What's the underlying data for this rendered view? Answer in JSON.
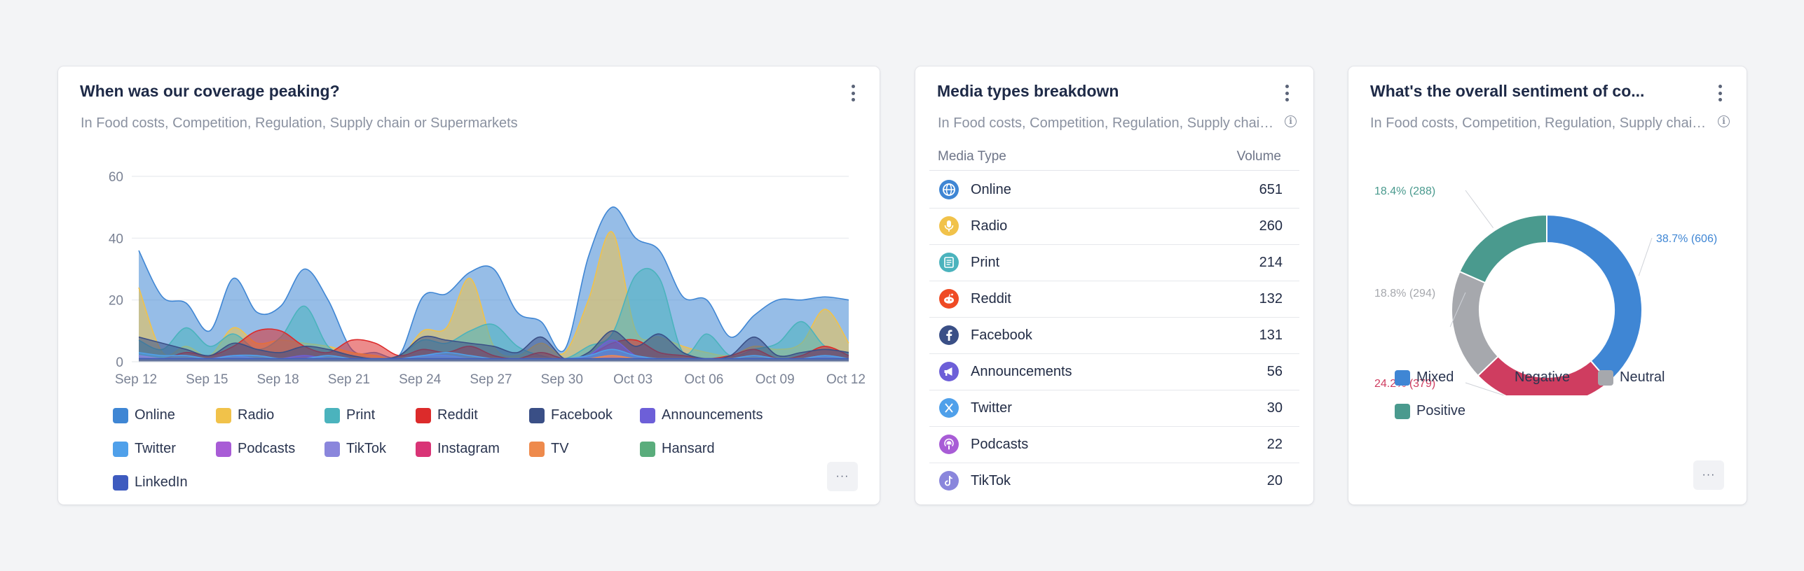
{
  "coverage_card": {
    "title": "When was our coverage peaking?",
    "subtitle": "In Food costs, Competition, Regulation, Supply chain or Supermarkets",
    "more_label": "···",
    "legend": [
      {
        "name": "Online",
        "color": "#3f86d4"
      },
      {
        "name": "Radio",
        "color": "#f1c24a"
      },
      {
        "name": "Print",
        "color": "#4bb3bd"
      },
      {
        "name": "Reddit",
        "color": "#dc2b2b"
      },
      {
        "name": "Facebook",
        "color": "#3a4f86"
      },
      {
        "name": "Announcements",
        "color": "#6d5fd8"
      },
      {
        "name": "Twitter",
        "color": "#4fa0ea"
      },
      {
        "name": "Podcasts",
        "color": "#a85cd6"
      },
      {
        "name": "TikTok",
        "color": "#8a86dc"
      },
      {
        "name": "Instagram",
        "color": "#d93476"
      },
      {
        "name": "TV",
        "color": "#ee8a4c"
      },
      {
        "name": "Hansard",
        "color": "#5aad7c"
      },
      {
        "name": "LinkedIn",
        "color": "#3e5bbf"
      }
    ]
  },
  "chart_data": [
    {
      "type": "area",
      "title": "When was our coverage peaking?",
      "ylim": [
        0,
        60
      ],
      "yticks": [
        "0",
        "20",
        "40",
        "60"
      ],
      "xticks": [
        "Sep 12",
        "Sep 15",
        "Sep 18",
        "Sep 21",
        "Sep 24",
        "Sep 27",
        "Sep 30",
        "Oct 03",
        "Oct 06",
        "Oct 09",
        "Oct 12"
      ],
      "x": [
        "Sep 12",
        "Sep 13",
        "Sep 14",
        "Sep 15",
        "Sep 16",
        "Sep 17",
        "Sep 18",
        "Sep 19",
        "Sep 20",
        "Sep 21",
        "Sep 22",
        "Sep 23",
        "Sep 24",
        "Sep 25",
        "Sep 26",
        "Sep 27",
        "Sep 28",
        "Sep 29",
        "Sep 30",
        "Oct 01",
        "Oct 02",
        "Oct 03",
        "Oct 04",
        "Oct 05",
        "Oct 06",
        "Oct 07",
        "Oct 08",
        "Oct 09",
        "Oct 10",
        "Oct 11",
        "Oct 12"
      ],
      "grid": true,
      "legend_position": "bottom",
      "series": [
        {
          "name": "Online",
          "values": [
            36,
            21,
            19,
            10,
            27,
            16,
            18,
            30,
            20,
            4,
            3,
            2,
            21,
            22,
            29,
            30,
            16,
            13,
            4,
            34,
            50,
            40,
            36,
            21,
            20,
            8,
            15,
            20,
            20,
            21,
            20
          ]
        },
        {
          "name": "Radio",
          "values": [
            24,
            3,
            5,
            2,
            11,
            6,
            7,
            6,
            5,
            3,
            2,
            1,
            10,
            11,
            27,
            5,
            2,
            6,
            3,
            20,
            42,
            10,
            8,
            5,
            3,
            2,
            5,
            4,
            6,
            17,
            6
          ]
        },
        {
          "name": "Print",
          "values": [
            7,
            4,
            11,
            5,
            9,
            4,
            8,
            18,
            5,
            2,
            1,
            2,
            7,
            6,
            10,
            12,
            5,
            2,
            1,
            5,
            9,
            28,
            27,
            3,
            9,
            2,
            4,
            6,
            13,
            5,
            3
          ]
        },
        {
          "name": "Reddit",
          "values": [
            2,
            1,
            3,
            2,
            5,
            10,
            10,
            5,
            3,
            7,
            6,
            2,
            4,
            3,
            5,
            2,
            1,
            3,
            1,
            2,
            6,
            7,
            3,
            2,
            1,
            2,
            4,
            1,
            2,
            5,
            2
          ]
        },
        {
          "name": "Facebook",
          "values": [
            8,
            6,
            4,
            2,
            6,
            4,
            3,
            5,
            4,
            2,
            1,
            2,
            8,
            7,
            6,
            5,
            3,
            8,
            1,
            3,
            10,
            5,
            9,
            3,
            1,
            2,
            8,
            2,
            3,
            4,
            3
          ]
        },
        {
          "name": "Announcements",
          "values": [
            2,
            1,
            1,
            1,
            2,
            1,
            1,
            2,
            1,
            1,
            1,
            1,
            2,
            2,
            1,
            1,
            1,
            1,
            1,
            2,
            7,
            2,
            1,
            1,
            1,
            1,
            1,
            1,
            1,
            2,
            1
          ]
        },
        {
          "name": "Twitter",
          "values": [
            3,
            2,
            2,
            1,
            2,
            2,
            1,
            1,
            2,
            1,
            1,
            1,
            2,
            3,
            2,
            1,
            1,
            1,
            1,
            2,
            4,
            2,
            1,
            1,
            1,
            1,
            2,
            1,
            1,
            2,
            1
          ]
        },
        {
          "name": "Podcasts",
          "values": [
            1,
            1,
            1,
            1,
            1,
            1,
            1,
            1,
            1,
            1,
            1,
            1,
            1,
            1,
            1,
            1,
            1,
            1,
            1,
            1,
            2,
            1,
            1,
            1,
            1,
            1,
            1,
            1,
            1,
            1,
            1
          ]
        },
        {
          "name": "TikTok",
          "values": [
            2,
            1,
            1,
            1,
            1,
            1,
            1,
            1,
            1,
            1,
            1,
            1,
            1,
            1,
            1,
            1,
            1,
            1,
            1,
            1,
            1,
            1,
            1,
            1,
            1,
            1,
            1,
            1,
            1,
            1,
            1
          ]
        },
        {
          "name": "Instagram",
          "values": [
            1,
            1,
            1,
            1,
            1,
            1,
            1,
            1,
            1,
            1,
            1,
            1,
            1,
            1,
            1,
            1,
            1,
            1,
            1,
            1,
            1,
            1,
            1,
            1,
            1,
            1,
            1,
            1,
            1,
            1,
            1
          ]
        },
        {
          "name": "TV",
          "values": [
            1,
            1,
            1,
            1,
            1,
            1,
            1,
            1,
            1,
            1,
            1,
            1,
            1,
            1,
            1,
            1,
            1,
            1,
            1,
            1,
            2,
            1,
            1,
            1,
            1,
            1,
            1,
            1,
            1,
            1,
            1
          ]
        },
        {
          "name": "Hansard",
          "values": [
            1,
            1,
            1,
            1,
            1,
            1,
            1,
            1,
            1,
            1,
            1,
            1,
            1,
            1,
            1,
            1,
            1,
            1,
            1,
            1,
            1,
            1,
            1,
            1,
            1,
            1,
            1,
            1,
            1,
            1,
            1
          ]
        },
        {
          "name": "LinkedIn",
          "values": [
            1,
            1,
            1,
            1,
            1,
            1,
            1,
            1,
            1,
            1,
            1,
            1,
            1,
            1,
            1,
            1,
            1,
            1,
            1,
            1,
            1,
            1,
            1,
            1,
            1,
            1,
            1,
            1,
            1,
            1,
            1
          ]
        }
      ]
    },
    {
      "type": "pie",
      "title": "What's the overall sentiment of co...",
      "donut": true,
      "legend_position": "bottom",
      "slices": [
        {
          "name": "Mixed",
          "value": 606,
          "percent": 38.7,
          "label": "38.7% (606)",
          "color": "#3f86d4"
        },
        {
          "name": "Negative",
          "value": 379,
          "percent": 24.2,
          "label": "24.2% (379)",
          "color": "#cf3d60"
        },
        {
          "name": "Neutral",
          "value": 294,
          "percent": 18.8,
          "label": "18.8% (294)",
          "color": "#a6a8ad"
        },
        {
          "name": "Positive",
          "value": 288,
          "percent": 18.4,
          "label": "18.4% (288)",
          "color": "#4a9a8e"
        }
      ]
    }
  ],
  "media_card": {
    "title": "Media types breakdown",
    "subtitle": "In Food costs, Competition, Regulation, Supply chain …",
    "col_type": "Media Type",
    "col_volume": "Volume",
    "rows": [
      {
        "label": "Online",
        "volume": "651",
        "icon": "globe-icon",
        "color": "#3f86d4"
      },
      {
        "label": "Radio",
        "volume": "260",
        "icon": "microphone-icon",
        "color": "#f1c24a"
      },
      {
        "label": "Print",
        "volume": "214",
        "icon": "newspaper-icon",
        "color": "#4bb3bd"
      },
      {
        "label": "Reddit",
        "volume": "132",
        "icon": "reddit-icon",
        "color": "#ef4a24"
      },
      {
        "label": "Facebook",
        "volume": "131",
        "icon": "facebook-icon",
        "color": "#3a4f86"
      },
      {
        "label": "Announcements",
        "volume": "56",
        "icon": "megaphone-icon",
        "color": "#6d5fd8"
      },
      {
        "label": "Twitter",
        "volume": "30",
        "icon": "x-twitter-icon",
        "color": "#4fa0ea"
      },
      {
        "label": "Podcasts",
        "volume": "22",
        "icon": "podcast-icon",
        "color": "#a85cd6"
      },
      {
        "label": "TikTok",
        "volume": "20",
        "icon": "tiktok-icon",
        "color": "#8a86dc"
      }
    ]
  },
  "sentiment_card": {
    "title": "What's the overall sentiment of co...",
    "subtitle": "In Food costs, Competition, Regulation, Supply chain …",
    "more_label": "···"
  }
}
